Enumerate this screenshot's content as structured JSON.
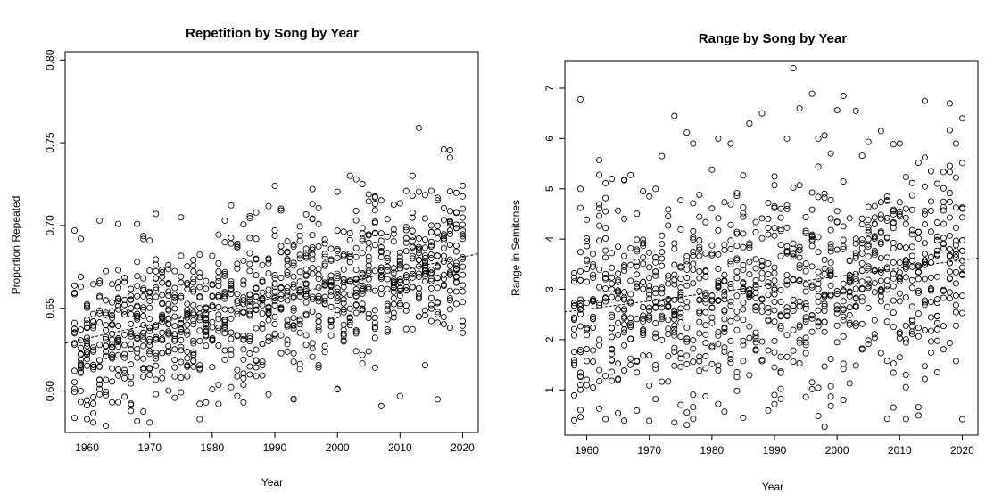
{
  "chart_data": [
    {
      "type": "scatter",
      "title": "Repetition by Song by Year",
      "xlabel": "Year",
      "ylabel": "Proportion Repeated",
      "xlim": [
        1956.5,
        2022.5
      ],
      "ylim": [
        0.575,
        0.805
      ],
      "xticks": [
        "1960",
        "1970",
        "1980",
        "1990",
        "2000",
        "2010",
        "2020"
      ],
      "yticks": [
        "0.60",
        "0.65",
        "0.70",
        "0.75",
        "0.80"
      ],
      "marker": "open-circle",
      "grid": false,
      "trend_line": {
        "style": "dashed",
        "x": [
          1956.5,
          2022.5
        ],
        "y": [
          0.629,
          0.683
        ]
      },
      "sample_points": [
        [
          1958,
          0.697
        ],
        [
          1959,
          0.692
        ],
        [
          1960,
          0.583
        ],
        [
          1961,
          0.581
        ],
        [
          1962,
          0.703
        ],
        [
          1963,
          0.579
        ],
        [
          1965,
          0.701
        ],
        [
          1967,
          0.588
        ],
        [
          1968,
          0.701
        ],
        [
          1970,
          0.581
        ],
        [
          1971,
          0.707
        ],
        [
          1975,
          0.705
        ],
        [
          1978,
          0.583
        ],
        [
          1980,
          0.601
        ],
        [
          1986,
          0.61
        ],
        [
          1989,
          0.598
        ],
        [
          1990,
          0.724
        ],
        [
          1993,
          0.595
        ],
        [
          1996,
          0.722
        ],
        [
          2000,
          0.601
        ],
        [
          2002,
          0.73
        ],
        [
          2004,
          0.725
        ],
        [
          2007,
          0.591
        ],
        [
          2010,
          0.597
        ],
        [
          2012,
          0.73
        ],
        [
          2013,
          0.759
        ],
        [
          2016,
          0.595
        ],
        [
          2017,
          0.746
        ],
        [
          2018,
          0.741
        ],
        [
          2020,
          0.724
        ]
      ]
    },
    {
      "type": "scatter",
      "title": "Range by Song by Year",
      "xlabel": "Year",
      "ylabel": "Range in Semitones",
      "xlim": [
        1956.5,
        2022.5
      ],
      "ylim": [
        0.1,
        7.55
      ],
      "xticks": [
        "1960",
        "1970",
        "1980",
        "1990",
        "2000",
        "2010",
        "2020"
      ],
      "yticks": [
        "1",
        "2",
        "3",
        "4",
        "5",
        "6",
        "7"
      ],
      "marker": "open-circle",
      "grid": false,
      "trend_line": {
        "style": "dashed",
        "x": [
          1956.5,
          2022.5
        ],
        "y": [
          2.55,
          3.62
        ]
      },
      "sample_points": [
        [
          1959,
          6.78
        ],
        [
          1959,
          5.0
        ],
        [
          1959,
          0.6
        ],
        [
          1963,
          0.42
        ],
        [
          1964,
          5.2
        ],
        [
          1966,
          5.18
        ],
        [
          1971,
          5.0
        ],
        [
          1972,
          5.65
        ],
        [
          1974,
          6.45
        ],
        [
          1974,
          0.35
        ],
        [
          1976,
          0.55
        ],
        [
          1977,
          5.9
        ],
        [
          1981,
          6.0
        ],
        [
          1983,
          5.9
        ],
        [
          1986,
          6.3
        ],
        [
          1988,
          6.5
        ],
        [
          1990,
          0.9
        ],
        [
          1992,
          6.0
        ],
        [
          1993,
          7.4
        ],
        [
          1994,
          6.6
        ],
        [
          1997,
          6.0
        ],
        [
          2001,
          6.85
        ],
        [
          2003,
          6.55
        ],
        [
          2007,
          6.15
        ],
        [
          2009,
          0.65
        ],
        [
          2010,
          5.9
        ],
        [
          2014,
          6.75
        ],
        [
          2018,
          6.7
        ],
        [
          2019,
          5.9
        ],
        [
          2020,
          6.4
        ]
      ]
    }
  ]
}
